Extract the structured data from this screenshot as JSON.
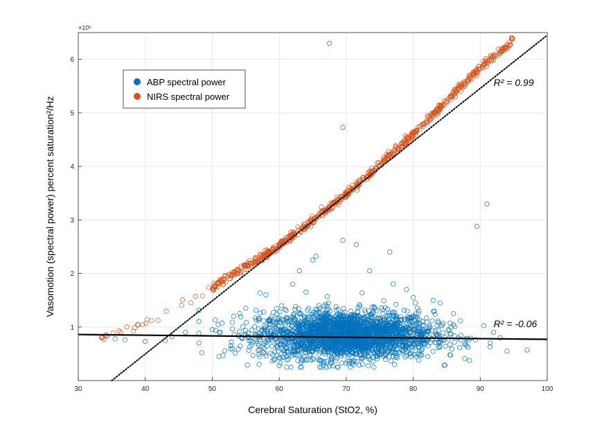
{
  "chart_data": {
    "type": "scatter",
    "title": "",
    "xlabel": "Cerebral Saturation (StO2, %)",
    "ylabel": "Vasomotion (spectral power) percent saturation²/Hz",
    "y_exponent_label": "×10⁵",
    "xlim": [
      30,
      100
    ],
    "ylim": [
      0,
      650000
    ],
    "x_ticks": [
      30,
      40,
      50,
      60,
      70,
      80,
      90,
      100
    ],
    "y_ticks": [
      100000,
      200000,
      300000,
      400000,
      500000,
      600000
    ],
    "y_tick_labels": [
      "1",
      "2",
      "3",
      "4",
      "5",
      "6"
    ],
    "grid": true,
    "legend_position": "top-left",
    "colors": {
      "abp": "#0072BD",
      "nirs": "#D95319",
      "fit": "#000000"
    },
    "series": [
      {
        "name": "ABP spectral power",
        "marker": "open-circle",
        "cluster": {
          "x_center": 70,
          "x_spread": 6.5,
          "y_center": 85000,
          "y_spread": 22000,
          "approx_count": 2600
        },
        "points": [
          [
            33.5,
            80000
          ],
          [
            35.5,
            78000
          ],
          [
            37,
            76000
          ],
          [
            40,
            73000
          ],
          [
            43,
            75000
          ],
          [
            44,
            82000
          ],
          [
            48,
            70000
          ],
          [
            50,
            95000
          ],
          [
            51,
            45000
          ],
          [
            55,
            135000
          ],
          [
            57,
            30000
          ],
          [
            58,
            160000
          ],
          [
            60,
            28000
          ],
          [
            62,
            180000
          ],
          [
            63,
            205000
          ],
          [
            64,
            165000
          ],
          [
            65,
            225000
          ],
          [
            65.5,
            232000
          ],
          [
            67.5,
            630000
          ],
          [
            69.5,
            473000
          ],
          [
            69.5,
            262000
          ],
          [
            71.5,
            254000
          ],
          [
            73.5,
            205000
          ],
          [
            76.5,
            240000
          ],
          [
            77,
            180000
          ],
          [
            79,
            170000
          ],
          [
            80,
            155000
          ],
          [
            83,
            150000
          ],
          [
            84,
            145000
          ],
          [
            86,
            125000
          ],
          [
            89.5,
            288000
          ],
          [
            91,
            330000
          ],
          [
            92,
            90000
          ],
          [
            93,
            80000
          ],
          [
            94,
            55000
          ],
          [
            97,
            57000
          ],
          [
            84,
            78000
          ],
          [
            88,
            65000
          ],
          [
            91.5,
            70000
          ],
          [
            46,
            90000
          ],
          [
            53,
            60000
          ]
        ]
      },
      {
        "name": "NIRS spectral power",
        "marker": "open-circle",
        "curve": {
          "x": [
            33.5,
            37,
            40,
            42,
            44,
            46,
            48,
            50,
            52,
            54,
            56,
            58,
            60,
            62,
            64,
            66,
            68,
            70,
            72,
            74,
            76,
            78,
            80,
            82,
            84,
            86,
            88,
            90,
            92,
            94,
            95
          ],
          "y": [
            80000,
            95000,
            110000,
            120000,
            135000,
            150000,
            162000,
            172000,
            190000,
            205000,
            220000,
            235000,
            252000,
            270000,
            290000,
            310000,
            328000,
            348000,
            370000,
            392000,
            415000,
            437000,
            460000,
            485000,
            510000,
            535000,
            560000,
            585000,
            605000,
            625000,
            637000
          ]
        }
      }
    ],
    "fit_lines": [
      {
        "series": "NIRS spectral power",
        "style": "dotted",
        "x": [
          35,
          100
        ],
        "y": [
          0,
          645000
        ],
        "r2_label": "R² = 0.99",
        "r2_at": [
          92,
          550000
        ]
      },
      {
        "series": "ABP spectral power",
        "style": "solid",
        "x": [
          30,
          100
        ],
        "y": [
          86000,
          77000
        ],
        "r2_label": "R² = -0.06",
        "r2_at": [
          92,
          100000
        ]
      }
    ]
  }
}
